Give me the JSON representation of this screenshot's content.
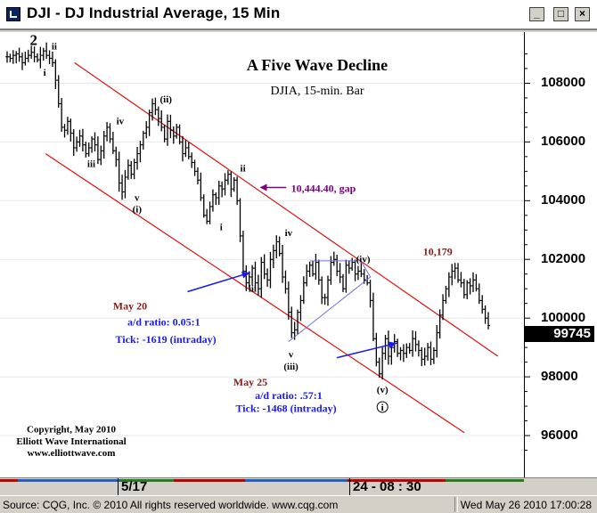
{
  "window": {
    "title": "DJI - DJ Industrial Average, 15 Min",
    "min_label": "_",
    "max_label": "□",
    "close_label": "×"
  },
  "chart_data": {
    "type": "bar",
    "title": "A Five Wave Decline",
    "subtitle": "DJIA, 15-min. Bar",
    "xlabel": "",
    "ylabel": "",
    "ylim": [
      95000,
      109500
    ],
    "y_ticks": [
      "108000",
      "106000",
      "104000",
      "102000",
      "100000",
      "98000",
      "96000"
    ],
    "y_tick_values": [
      108000,
      106000,
      104000,
      102000,
      100000,
      98000,
      96000
    ],
    "x_tick_labels": [
      "5/17",
      "24 - 08 : 30"
    ],
    "last_value": "99745",
    "series": [
      {
        "values": [
          108900,
          108850,
          108950,
          109000,
          108900,
          108700,
          108850,
          108950,
          109050,
          108900,
          108800,
          108950,
          109100,
          108950,
          108850,
          108700,
          108100,
          107300,
          106500,
          106400,
          106700,
          106300,
          105800,
          106000,
          106200,
          105900,
          105600,
          105800,
          106100,
          105900,
          105400,
          105700,
          106200,
          106500,
          106100,
          105700,
          105400,
          104600,
          104300,
          104800,
          105200,
          104900,
          105300,
          105600,
          105900,
          106300,
          106500,
          107000,
          107300,
          107100,
          106800,
          106500,
          106100,
          106700,
          106400,
          106200,
          106500,
          106000,
          105600,
          105800,
          105500,
          105300,
          105000,
          104700,
          104100,
          103500,
          103300,
          103800,
          104200,
          104100,
          104500,
          104400,
          104700,
          104900,
          104400,
          104700,
          104000,
          102800,
          101600,
          101200,
          101400,
          101700,
          101200,
          101000,
          101900,
          101500,
          101300,
          102000,
          102300,
          102600,
          102200,
          101400,
          101000,
          100200,
          99500,
          99600,
          100200,
          100600,
          101200,
          101600,
          101800,
          101500,
          101900,
          101300,
          100700,
          100700,
          101300,
          101900,
          102000,
          101600,
          101400,
          101000,
          101800,
          101700,
          101900,
          101500,
          101600,
          101500,
          101300,
          101200,
          100600,
          99300,
          98500,
          98100,
          98800,
          99300,
          98700,
          99000,
          99200,
          98800,
          98900,
          98800,
          99000,
          98900,
          99300,
          99100,
          98900,
          98600,
          98700,
          99000,
          98600,
          98900,
          99500,
          100100,
          100600,
          101000,
          101400,
          101600,
          101700,
          101300,
          101200,
          100800,
          101200,
          101100,
          101300,
          101000,
          100600,
          100300,
          100000,
          99745
        ]
      }
    ],
    "annotations": {
      "wave_2": "2",
      "wave_i_top": "ii",
      "wave_i": "i",
      "wave_iii_a": "iii",
      "wave_iv_a": "iv",
      "wave_v_a": "v",
      "wave_p_i": "(i)",
      "wave_p_ii": "(ii)",
      "wave_ii_b": "ii",
      "wave_i_b": "i",
      "gap_label": "10,444.40, gap",
      "wave_iii_b": "iii",
      "wave_iv_b": "iv",
      "wave_v_b": "v",
      "wave_p_iii": "(iii)",
      "wave_p_iv": "(iv)",
      "wave_p_v": "(v)",
      "wave_circle_1": "i",
      "high_label": "10,179",
      "may20_title": "May 20",
      "may20_ratio": "a/d ratio: 0.05:1",
      "may20_tick": "Tick: -1619 (intraday)",
      "may25_title": "May 25",
      "may25_ratio": "a/d ratio: .57:1",
      "may25_tick": "Tick: -1468 (intraday)",
      "copyright_1": "Copyright, May 2010",
      "copyright_2": "Elliott Wave International",
      "copyright_3": "www.elliottwave.com"
    },
    "colors": {
      "bars": "#000000",
      "channel": "#e01010",
      "arrows": "#1a1aee",
      "gap_arrow": "#800080",
      "triangle": "#7070e0"
    }
  },
  "status": {
    "left": "Source: CQG, Inc. © 2010 All rights reserved worldwide. www.cqg.com",
    "right": "Wed May 26 2010 17:00:28"
  }
}
